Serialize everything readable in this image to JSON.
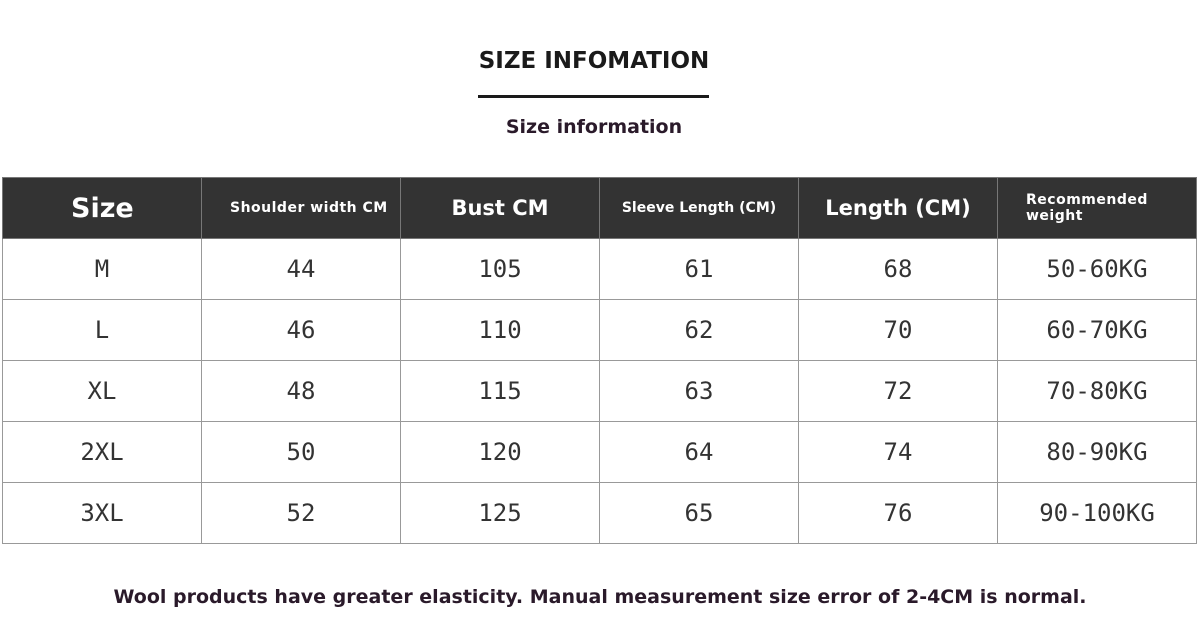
{
  "header": {
    "title": "SIZE INFOMATION",
    "subtitle": "Size information"
  },
  "table": {
    "columns": [
      "Size",
      "Shoulder width CM",
      "Bust CM",
      "Sleeve Length (CM)",
      "Length (CM)",
      "Recommended weight"
    ],
    "rows": [
      [
        "M",
        44,
        105,
        61,
        68,
        "50-60KG"
      ],
      [
        "L",
        46,
        110,
        62,
        70,
        "60-70KG"
      ],
      [
        "XL",
        48,
        115,
        63,
        72,
        "70-80KG"
      ],
      [
        "2XL",
        50,
        120,
        64,
        74,
        "80-90KG"
      ],
      [
        "3XL",
        52,
        125,
        65,
        76,
        "90-100KG"
      ]
    ]
  },
  "footer": {
    "note": "Wool products have greater elasticity. Manual measurement size error of 2-4CM is normal."
  }
}
